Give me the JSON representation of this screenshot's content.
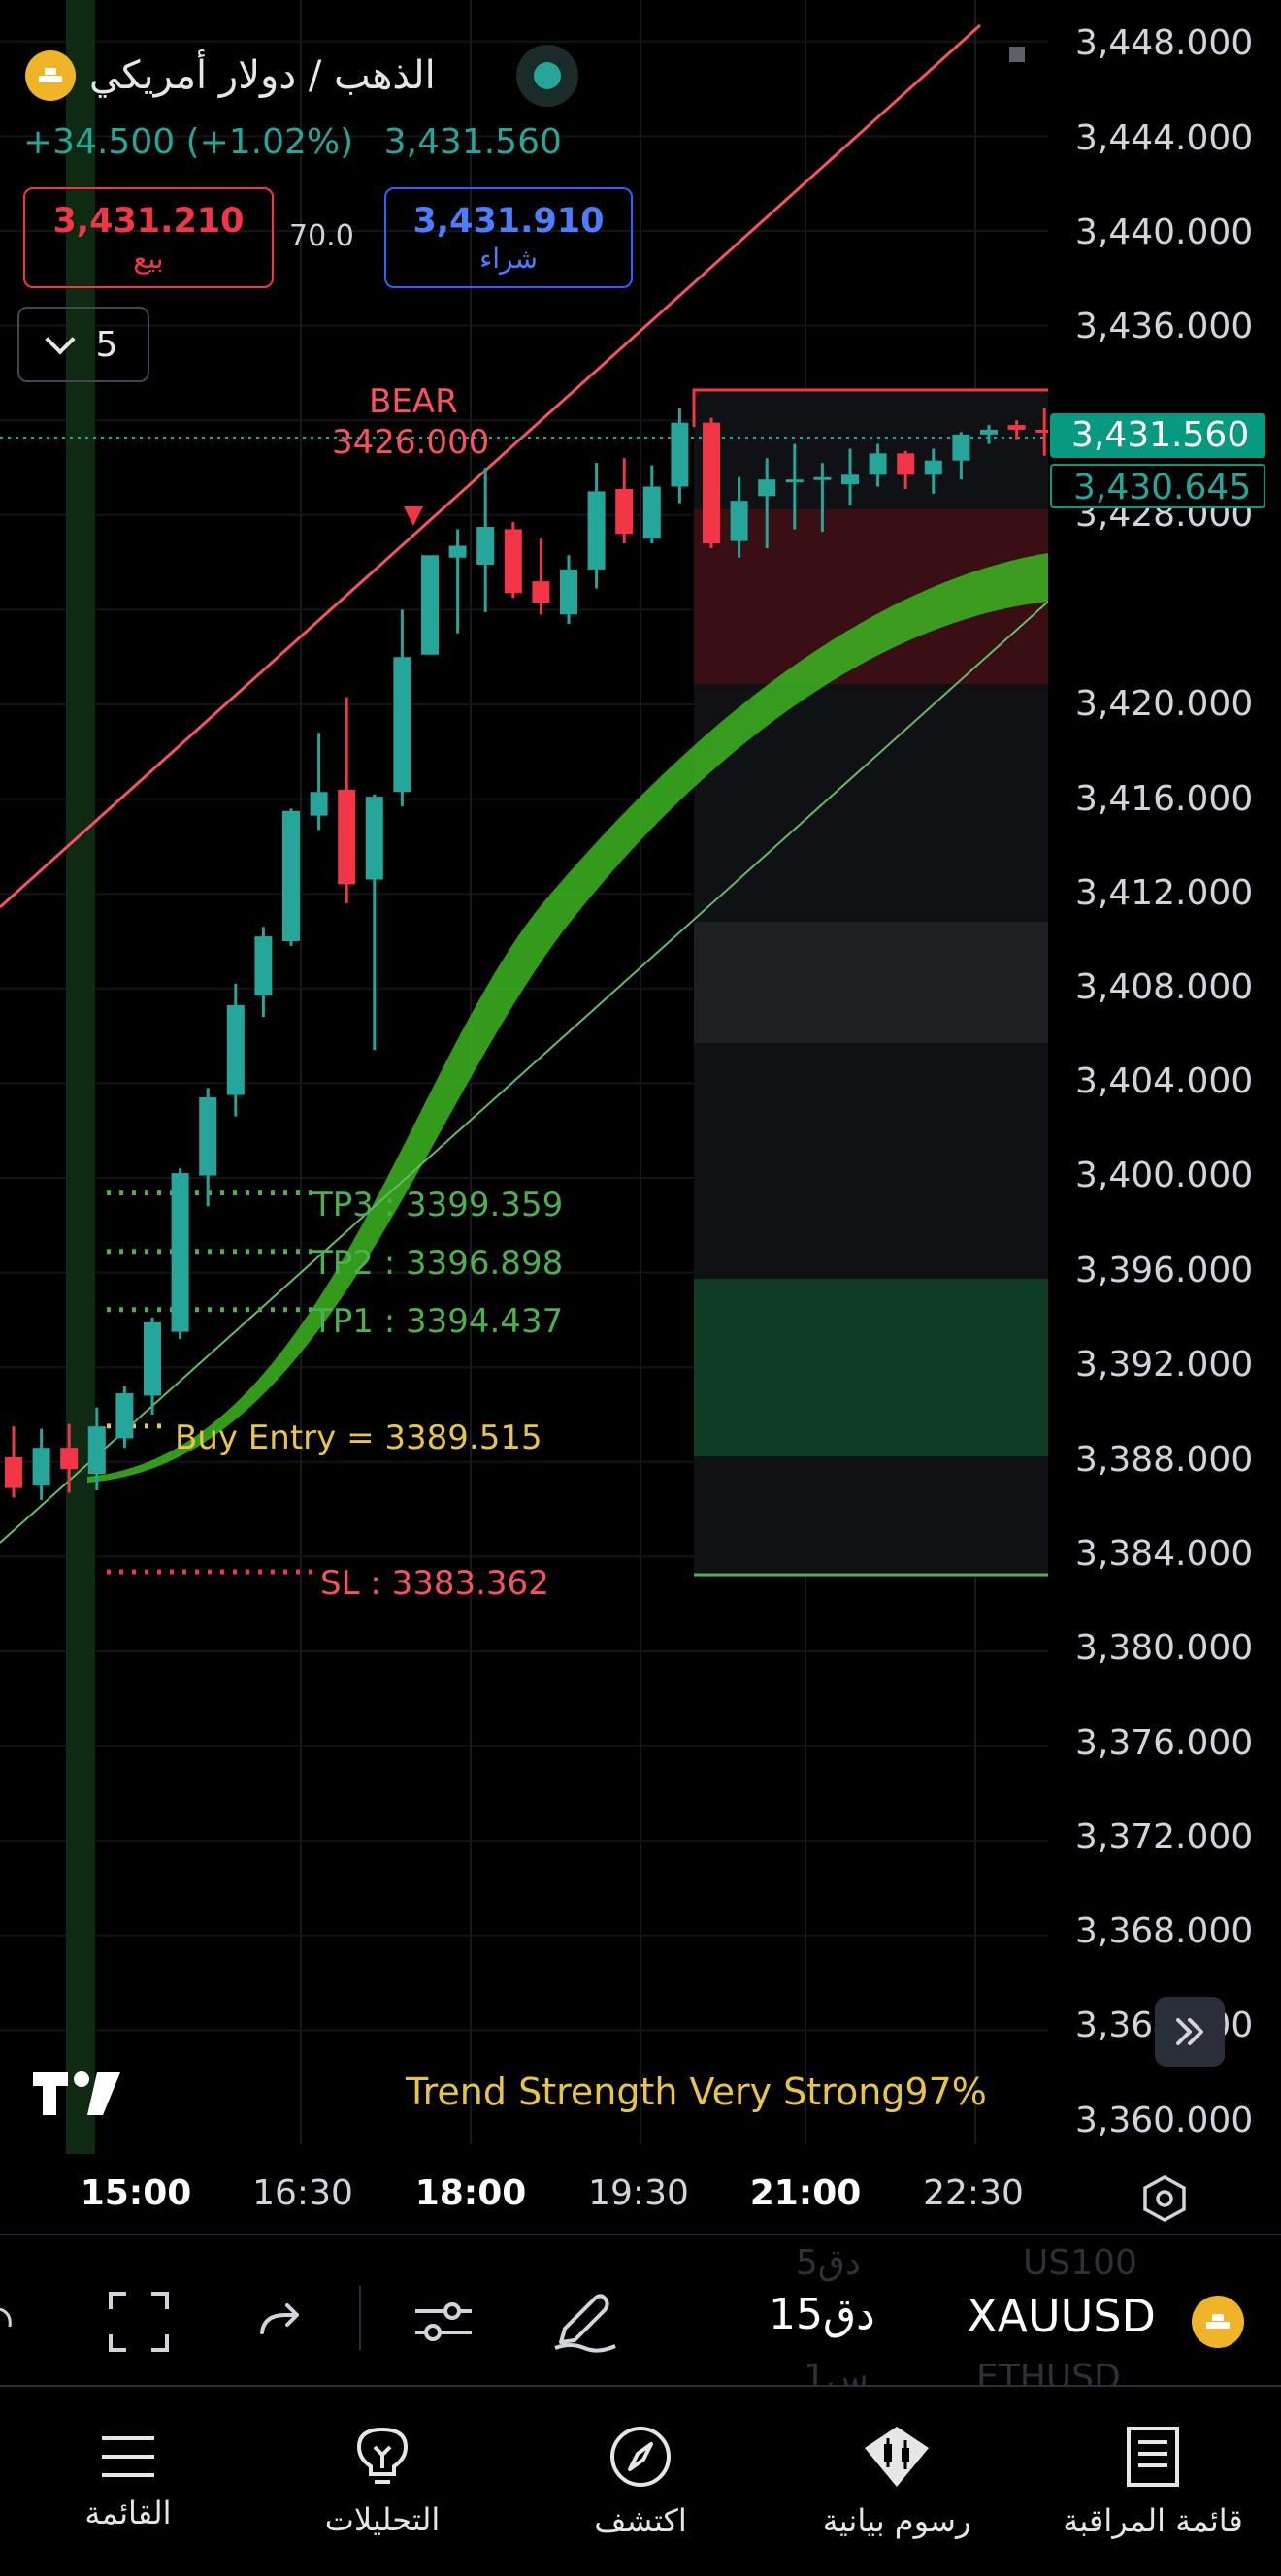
{
  "header": {
    "symbol_title": "الذهب / دولار أمريكي",
    "change": "+34.500 (+1.02%)",
    "last_price": "3,431.560"
  },
  "order_panel": {
    "sell_price": "3,431.210",
    "sell_label": "بيع",
    "spread": "70.0",
    "buy_price": "3,431.910",
    "buy_label": "شراء"
  },
  "interval_toggle": {
    "value": "5"
  },
  "price_axis": {
    "labels": [
      "3,448.000",
      "3,444.000",
      "3,440.000",
      "3,436.000",
      "3,428.000",
      "3,420.000",
      "3,416.000",
      "3,412.000",
      "3,408.000",
      "3,404.000",
      "3,400.000",
      "3,396.000",
      "3,392.000",
      "3,388.000",
      "3,384.000",
      "3,380.000",
      "3,376.000",
      "3,372.000",
      "3,368.000",
      "3,364.000",
      "3,360.000"
    ],
    "current_price_tag": "3,431.560",
    "line_price_tag": "3,430.645"
  },
  "time_axis": {
    "labels": [
      {
        "text": "15:00",
        "bold": true
      },
      {
        "text": "16:30",
        "bold": false
      },
      {
        "text": "18:00",
        "bold": true
      },
      {
        "text": "19:30",
        "bold": false
      },
      {
        "text": "21:00",
        "bold": true
      },
      {
        "text": "22:30",
        "bold": false
      }
    ]
  },
  "signals": {
    "bear_label": "BEAR",
    "bear_price": "3426.000",
    "tp3": "TP3 : 3399.359",
    "tp2": "TP2 : 3396.898",
    "tp1": "TP1 : 3394.437",
    "buy_entry": "Buy Entry = 3389.515",
    "sl": "SL : 3383.362",
    "trend_strength": "Trend Strength Very Strong97%"
  },
  "colors": {
    "up": "#26a69a",
    "down": "#f23645",
    "trend_band": "#3cb521",
    "entry": "#e8c547",
    "tp": "#4caf50"
  },
  "toolbar": {
    "timeframe": "15دق",
    "symbol": "XAUUSD",
    "ghost_above": [
      "5دق",
      "US100"
    ],
    "ghost_below": [
      "1س",
      "ETHUSD"
    ]
  },
  "nav": {
    "items": [
      {
        "label": "القائمة",
        "icon": "menu-icon"
      },
      {
        "label": "التحليلات",
        "icon": "ideas-bulb-icon"
      },
      {
        "label": "اكتشف",
        "icon": "compass-icon"
      },
      {
        "label": "رسوم بيانية",
        "icon": "chart-candles-icon"
      },
      {
        "label": "قائمة المراقبة",
        "icon": "watchlist-icon"
      }
    ]
  },
  "chart_data": {
    "type": "candlestick",
    "timeframe": "15",
    "x_ticks": [
      "15:00",
      "16:30",
      "18:00",
      "19:30",
      "21:00",
      "22:30"
    ],
    "ylim": [
      3360,
      3448
    ],
    "candles": [
      {
        "o": 3388.2,
        "h": 3389.5,
        "l": 3386.5,
        "c": 3386.9
      },
      {
        "o": 3387.0,
        "h": 3389.4,
        "l": 3386.4,
        "c": 3388.6
      },
      {
        "o": 3388.6,
        "h": 3389.6,
        "l": 3386.7,
        "c": 3387.7
      },
      {
        "o": 3387.5,
        "h": 3390.3,
        "l": 3386.8,
        "c": 3389.5
      },
      {
        "o": 3389.0,
        "h": 3391.2,
        "l": 3388.6,
        "c": 3390.9
      },
      {
        "o": 3390.8,
        "h": 3394.1,
        "l": 3390.0,
        "c": 3393.9
      },
      {
        "o": 3393.5,
        "h": 3400.4,
        "l": 3393.2,
        "c": 3400.2
      },
      {
        "o": 3400.1,
        "h": 3403.8,
        "l": 3398.8,
        "c": 3403.4
      },
      {
        "o": 3403.5,
        "h": 3408.2,
        "l": 3402.6,
        "c": 3407.3
      },
      {
        "o": 3407.7,
        "h": 3410.6,
        "l": 3406.8,
        "c": 3410.2
      },
      {
        "o": 3410.0,
        "h": 3415.6,
        "l": 3409.8,
        "c": 3415.5
      },
      {
        "o": 3415.3,
        "h": 3418.8,
        "l": 3414.7,
        "c": 3416.3
      },
      {
        "o": 3416.4,
        "h": 3420.3,
        "l": 3411.6,
        "c": 3412.4
      },
      {
        "o": 3412.6,
        "h": 3416.2,
        "l": 3405.4,
        "c": 3416.1
      },
      {
        "o": 3416.3,
        "h": 3424.0,
        "l": 3415.7,
        "c": 3422.0
      },
      {
        "o": 3422.1,
        "h": 3426.2,
        "l": 3422.1,
        "c": 3426.3
      },
      {
        "o": 3426.2,
        "h": 3427.4,
        "l": 3423.0,
        "c": 3426.7
      },
      {
        "o": 3425.9,
        "h": 3430.0,
        "l": 3423.9,
        "c": 3427.5
      },
      {
        "o": 3427.4,
        "h": 3427.7,
        "l": 3424.5,
        "c": 3424.7
      },
      {
        "o": 3425.2,
        "h": 3427.0,
        "l": 3423.8,
        "c": 3424.3
      },
      {
        "o": 3423.8,
        "h": 3426.3,
        "l": 3423.4,
        "c": 3425.7
      },
      {
        "o": 3425.7,
        "h": 3430.2,
        "l": 3424.9,
        "c": 3429.0
      },
      {
        "o": 3429.1,
        "h": 3430.4,
        "l": 3426.8,
        "c": 3427.2
      },
      {
        "o": 3427.0,
        "h": 3430.1,
        "l": 3426.8,
        "c": 3429.2
      },
      {
        "o": 3429.2,
        "h": 3432.5,
        "l": 3428.5,
        "c": 3431.9
      },
      {
        "o": 3431.9,
        "h": 3432.1,
        "l": 3426.6,
        "c": 3426.8
      },
      {
        "o": 3426.9,
        "h": 3429.6,
        "l": 3426.2,
        "c": 3428.6
      },
      {
        "o": 3428.8,
        "h": 3430.4,
        "l": 3426.6,
        "c": 3429.5
      },
      {
        "o": 3429.4,
        "h": 3431.0,
        "l": 3427.4,
        "c": 3429.5
      },
      {
        "o": 3429.6,
        "h": 3430.2,
        "l": 3427.3,
        "c": 3429.6
      },
      {
        "o": 3429.3,
        "h": 3430.8,
        "l": 3428.4,
        "c": 3429.7
      },
      {
        "o": 3429.7,
        "h": 3431.0,
        "l": 3429.2,
        "c": 3430.6
      },
      {
        "o": 3430.6,
        "h": 3430.7,
        "l": 3429.1,
        "c": 3429.7
      },
      {
        "o": 3429.7,
        "h": 3430.8,
        "l": 3428.9,
        "c": 3430.3
      },
      {
        "o": 3430.3,
        "h": 3431.5,
        "l": 3429.5,
        "c": 3431.4
      },
      {
        "o": 3431.4,
        "h": 3431.8,
        "l": 3431.0,
        "c": 3431.6
      },
      {
        "o": 3431.8,
        "h": 3432.0,
        "l": 3431.2,
        "c": 3431.6
      },
      {
        "o": 3431.6,
        "h": 3432.5,
        "l": 3430.5,
        "c": 3431.5
      }
    ],
    "levels": {
      "tp3": 3399.359,
      "tp2": 3396.898,
      "tp1": 3394.437,
      "entry": 3389.515,
      "sl": 3383.362,
      "bear": 3426.0
    }
  }
}
